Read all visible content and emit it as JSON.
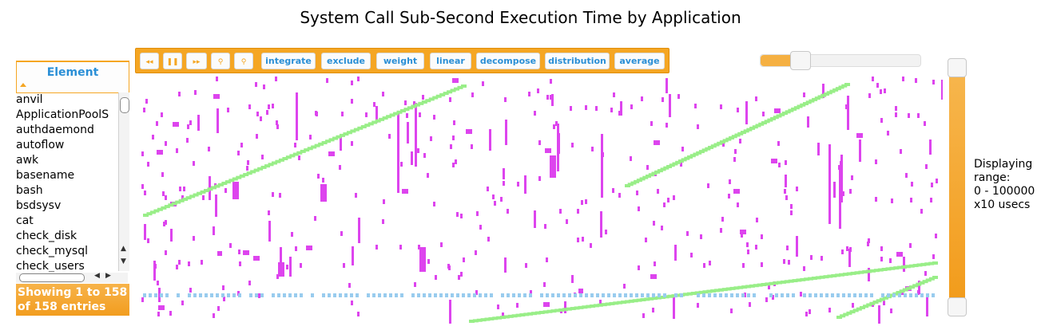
{
  "title": "System Call Sub-Second Execution Time by Application",
  "element_panel": {
    "header": "Element",
    "items": [
      "anvil",
      "ApplicationPoolS",
      "authdaemond",
      "autoflow",
      "awk",
      "basename",
      "bash",
      "bsdsysv",
      "cat",
      "check_disk",
      "check_mysql",
      "check_users"
    ],
    "entries_line1": "Showing 1 to 158",
    "entries_line2": "of 158 entries"
  },
  "toolbar": {
    "rewind_icon": "◂◂",
    "pause_icon": "❚❚",
    "forward_icon": "▸▸",
    "zoom_in_icon": "⚲",
    "zoom_out_icon": "⚲",
    "buttons": [
      "integrate",
      "exclude",
      "weight",
      "linear",
      "decompose",
      "distribution",
      "average"
    ]
  },
  "slider": {
    "level": 0.25
  },
  "range": {
    "line1": "Displaying",
    "line2": "range:",
    "line3": "0 - 100000",
    "line4": "x10 usecs"
  },
  "colors": {
    "accent": "#f5a623",
    "link": "#2a8fd6",
    "magenta": "#dd44ee",
    "green": "#99ee88",
    "blue": "#99ccee"
  }
}
